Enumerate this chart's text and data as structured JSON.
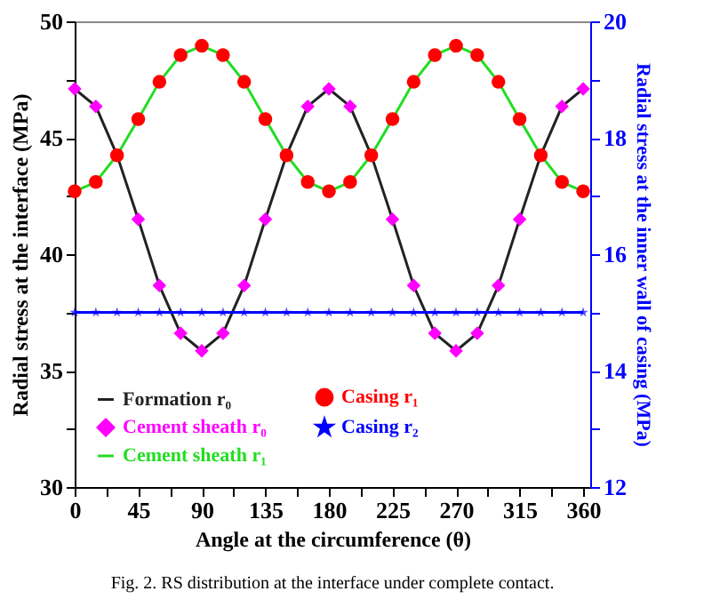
{
  "chart_data": {
    "type": "line",
    "xlabel": "Angle at the circumference (θ)",
    "ylabel": "Radial stress at the interface (MPa)",
    "y2label": "Radial stress at the inner wall of casing (MPa)",
    "annotations": [
      "Fig. 2. RS distribution at the interface under complete contact."
    ],
    "x": [
      0,
      15,
      30,
      45,
      60,
      75,
      90,
      105,
      120,
      135,
      150,
      165,
      180,
      195,
      210,
      225,
      240,
      255,
      270,
      285,
      300,
      315,
      330,
      345,
      360
    ],
    "xlim": [
      0,
      365
    ],
    "xticks": [
      0,
      {
        "value": 22.5,
        "label": null
      },
      45,
      {
        "value": 67.5,
        "label": null
      },
      90,
      {
        "value": 112.5,
        "label": null
      },
      135,
      {
        "value": 157.5,
        "label": null
      },
      180,
      {
        "value": 202.5,
        "label": null
      },
      225,
      {
        "value": 247.5,
        "label": null
      },
      270,
      {
        "value": 292.5,
        "label": null
      },
      315,
      {
        "value": 337.5,
        "label": null
      },
      360
    ],
    "ylim": [
      30,
      50
    ],
    "yticks": [
      30,
      {
        "value": 32.5,
        "label": null
      },
      35,
      {
        "value": 37.5,
        "label": null
      },
      40,
      {
        "value": 42.5,
        "label": null
      },
      45,
      {
        "value": 47.5,
        "label": null
      },
      50
    ],
    "y2lim": [
      12,
      20
    ],
    "y2ticks": [
      12,
      {
        "value": 13,
        "label": null
      },
      14,
      {
        "value": 15,
        "label": null
      },
      16,
      {
        "value": 17,
        "label": null
      },
      18,
      {
        "value": 19,
        "label": null
      },
      20
    ],
    "grid": false,
    "legend": "bottom left",
    "series": [
      {
        "name": "Formation r₀",
        "color": "#222222",
        "marker": "none",
        "line_style": "solid",
        "values": [
          47.1,
          46.35,
          44.25,
          41.5,
          38.65,
          36.6,
          35.85,
          36.6,
          38.65,
          41.5,
          44.25,
          46.35,
          47.1,
          46.35,
          44.25,
          41.5,
          38.65,
          36.6,
          35.85,
          36.6,
          38.65,
          41.5,
          44.25,
          46.35,
          47.1
        ]
      },
      {
        "name": "Cement sheath r₀",
        "type": "scatter",
        "color": "#ff00ff",
        "marker": "diamond",
        "values": [
          47.1,
          46.35,
          null,
          41.5,
          38.65,
          36.6,
          35.85,
          36.6,
          38.65,
          41.5,
          null,
          46.35,
          47.1,
          46.35,
          null,
          41.5,
          38.65,
          36.6,
          35.85,
          36.6,
          38.65,
          41.5,
          null,
          46.35,
          47.1
        ]
      },
      {
        "name": "Cement sheath r₁",
        "color": "#22dd22",
        "marker": "none",
        "line_style": "solid",
        "values": [
          42.7,
          43.1,
          44.25,
          45.8,
          47.4,
          48.55,
          48.95,
          48.55,
          47.4,
          45.8,
          44.25,
          43.1,
          42.7,
          43.1,
          44.25,
          45.8,
          47.4,
          48.55,
          48.95,
          48.55,
          47.4,
          45.8,
          44.25,
          43.1,
          42.7
        ]
      },
      {
        "name": "Casing r₁",
        "type": "scatter",
        "color": "#ff0000",
        "marker": "circle",
        "values": [
          42.7,
          43.1,
          44.25,
          45.8,
          47.4,
          48.55,
          48.95,
          48.55,
          47.4,
          45.8,
          44.25,
          43.1,
          42.7,
          43.1,
          44.25,
          45.8,
          47.4,
          48.55,
          48.95,
          48.55,
          47.4,
          45.8,
          44.25,
          43.1,
          42.7
        ]
      },
      {
        "name": "Casing r₂",
        "color": "#0000ff",
        "marker": "star",
        "line_style": "solid",
        "axis": "y2",
        "values": [
          15,
          15,
          15,
          15,
          15,
          15,
          15,
          15,
          15,
          15,
          15,
          15,
          15,
          15,
          15,
          15,
          15,
          15,
          15,
          15,
          15,
          15,
          15,
          15,
          15
        ]
      }
    ]
  }
}
